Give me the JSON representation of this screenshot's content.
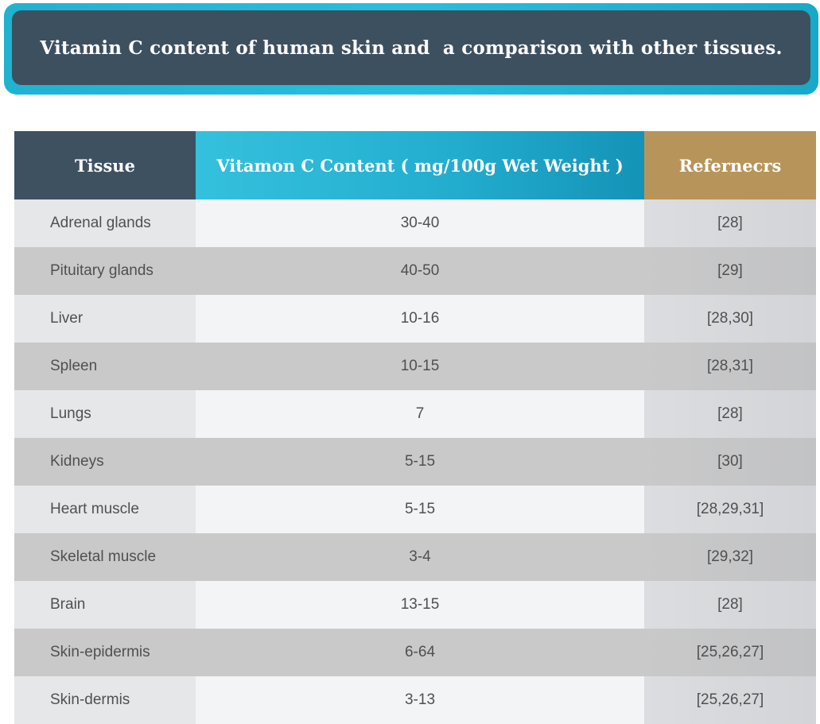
{
  "title": "Vitamin C content of human skin and  a comparison with other tissues.",
  "table": {
    "headers": {
      "tissue": "Tissue",
      "content": "Vitamon C Content ( mg/100g Wet Weight )",
      "references": "Refernecrs"
    },
    "rows": [
      {
        "tissue": "Adrenal glands",
        "content": "30-40",
        "references": "[28]"
      },
      {
        "tissue": "Pituitary glands",
        "content": "40-50",
        "references": "[29]"
      },
      {
        "tissue": "Liver",
        "content": "10-16",
        "references": "[28,30]"
      },
      {
        "tissue": "Spleen",
        "content": "10-15",
        "references": "[28,31]"
      },
      {
        "tissue": "Lungs",
        "content": "7",
        "references": "[28]"
      },
      {
        "tissue": "Kidneys",
        "content": "5-15",
        "references": "[30]"
      },
      {
        "tissue": "Heart muscle",
        "content": "5-15",
        "references": "[28,29,31]"
      },
      {
        "tissue": "Skeletal muscle",
        "content": "3-4",
        "references": "[29,32]"
      },
      {
        "tissue": "Brain",
        "content": "13-15",
        "references": "[28]"
      },
      {
        "tissue": "Skin-epidermis",
        "content": "6-64",
        "references": "[25,26,27]"
      },
      {
        "tissue": "Skin-dermis",
        "content": "3-13",
        "references": "[25,26,27]"
      }
    ]
  },
  "colors": {
    "title_bg": "#3d5060",
    "title_frame": "#27bfdc",
    "header_tissue": "#3e5161",
    "header_content": "#23aed0",
    "header_references": "#b7955a"
  }
}
